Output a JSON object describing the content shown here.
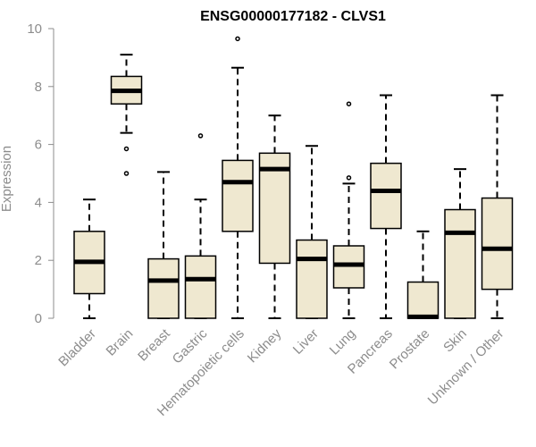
{
  "chart_data": {
    "type": "boxplot",
    "title": "ENSG00000177182 - CLVS1",
    "xlabel": "",
    "ylabel": "Expression",
    "ylim": [
      0,
      10
    ],
    "yticks": [
      0,
      2,
      4,
      6,
      8,
      10
    ],
    "grid": false,
    "box_fill": "#efe8d0",
    "categories": [
      "Bladder",
      "Brain",
      "Breast",
      "Gastric",
      "Hematopoietic cells",
      "Kidney",
      "Liver",
      "Lung",
      "Pancreas",
      "Prostate",
      "Skin",
      "Unknown / Other"
    ],
    "boxes": [
      {
        "min": 0.0,
        "q1": 0.85,
        "median": 1.95,
        "q3": 3.0,
        "max": 4.1,
        "outliers": []
      },
      {
        "min": 6.4,
        "q1": 7.4,
        "median": 7.85,
        "q3": 8.35,
        "max": 9.1,
        "outliers": [
          5.85,
          5.0
        ]
      },
      {
        "min": 0.0,
        "q1": 0.0,
        "median": 1.3,
        "q3": 2.05,
        "max": 5.05,
        "outliers": []
      },
      {
        "min": 0.0,
        "q1": 0.0,
        "median": 1.35,
        "q3": 2.15,
        "max": 4.1,
        "outliers": [
          6.3
        ]
      },
      {
        "min": 0.0,
        "q1": 3.0,
        "median": 4.7,
        "q3": 5.45,
        "max": 8.65,
        "outliers": [
          9.65
        ]
      },
      {
        "min": 0.0,
        "q1": 1.9,
        "median": 5.15,
        "q3": 5.7,
        "max": 7.0,
        "outliers": []
      },
      {
        "min": 0.0,
        "q1": 0.0,
        "median": 2.05,
        "q3": 2.7,
        "max": 5.95,
        "outliers": []
      },
      {
        "min": 0.0,
        "q1": 1.05,
        "median": 1.85,
        "q3": 2.5,
        "max": 4.65,
        "outliers": [
          4.85,
          7.4
        ]
      },
      {
        "min": 0.0,
        "q1": 3.1,
        "median": 4.4,
        "q3": 5.35,
        "max": 7.7,
        "outliers": []
      },
      {
        "min": 0.0,
        "q1": 0.0,
        "median": 0.05,
        "q3": 1.25,
        "max": 3.0,
        "outliers": []
      },
      {
        "min": 0.0,
        "q1": 0.0,
        "median": 2.95,
        "q3": 3.75,
        "max": 5.15,
        "outliers": []
      },
      {
        "min": 0.0,
        "q1": 1.0,
        "median": 2.4,
        "q3": 4.15,
        "max": 7.7,
        "outliers": []
      }
    ]
  }
}
